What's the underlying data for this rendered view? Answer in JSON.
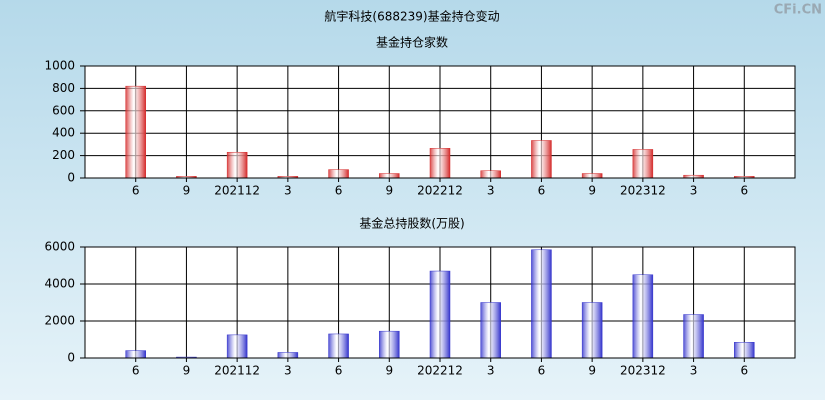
{
  "title": "航宇科技(688239)基金持仓变动",
  "watermark": "CFi.CN",
  "chart_data": [
    {
      "type": "bar",
      "title": "基金持仓家数",
      "color": "#d42a2a",
      "categories": [
        "6",
        "9",
        "202112",
        "3",
        "6",
        "9",
        "202212",
        "3",
        "6",
        "9",
        "202312",
        "3",
        "6"
      ],
      "values": [
        820,
        15,
        230,
        15,
        75,
        40,
        265,
        65,
        335,
        40,
        255,
        25,
        15
      ],
      "ylim": [
        0,
        1000
      ],
      "yticks": [
        0,
        200,
        400,
        600,
        800,
        1000
      ],
      "grid": true
    },
    {
      "type": "bar",
      "title": "基金总持股数(万股)",
      "color": "#3333cc",
      "categories": [
        "6",
        "9",
        "202112",
        "3",
        "6",
        "9",
        "202212",
        "3",
        "6",
        "9",
        "202312",
        "3",
        "6"
      ],
      "values": [
        400,
        50,
        1250,
        300,
        1300,
        1450,
        4700,
        3000,
        5850,
        3000,
        4500,
        2350,
        850
      ],
      "ylim": [
        0,
        6000
      ],
      "yticks": [
        0,
        2000,
        4000,
        6000
      ],
      "grid": true
    }
  ]
}
